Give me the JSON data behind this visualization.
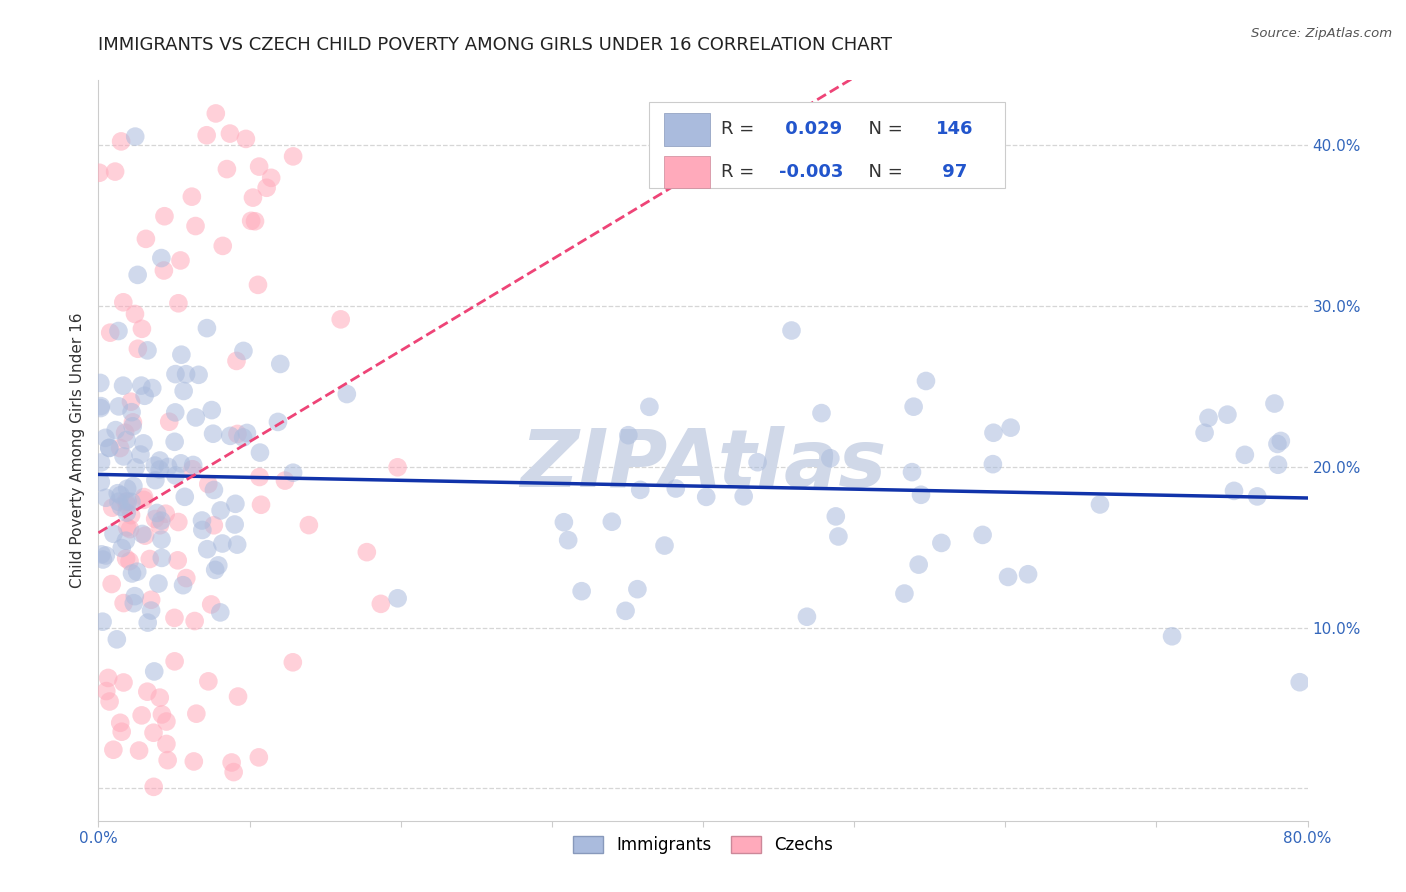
{
  "title": "IMMIGRANTS VS CZECH CHILD POVERTY AMONG GIRLS UNDER 16 CORRELATION CHART",
  "source": "Source: ZipAtlas.com",
  "ylabel": "Child Poverty Among Girls Under 16",
  "xlim": [
    0.0,
    0.8
  ],
  "ylim": [
    -0.02,
    0.44
  ],
  "xticks": [
    0.0,
    0.1,
    0.2,
    0.3,
    0.4,
    0.5,
    0.6,
    0.7,
    0.8
  ],
  "xticklabels": [
    "0.0%",
    "",
    "",
    "",
    "",
    "",
    "",
    "",
    "80.0%"
  ],
  "yticks_right": [
    0.1,
    0.2,
    0.3,
    0.4
  ],
  "yticklabels_right": [
    "10.0%",
    "20.0%",
    "30.0%",
    "40.0%"
  ],
  "r_immigrants": 0.029,
  "n_immigrants": 146,
  "r_czechs": -0.003,
  "n_czechs": 97,
  "immigrants_color": "#aabbdd",
  "czechs_color": "#ffaabb",
  "trend_immigrants_color": "#1133aa",
  "trend_czechs_color": "#ee4477",
  "watermark_color": "#d0d8e8",
  "background_color": "#ffffff",
  "grid_color": "#cccccc",
  "title_fontsize": 13,
  "axis_label_fontsize": 11,
  "tick_fontsize": 11,
  "marker_size": 180,
  "marker_alpha": 0.55
}
